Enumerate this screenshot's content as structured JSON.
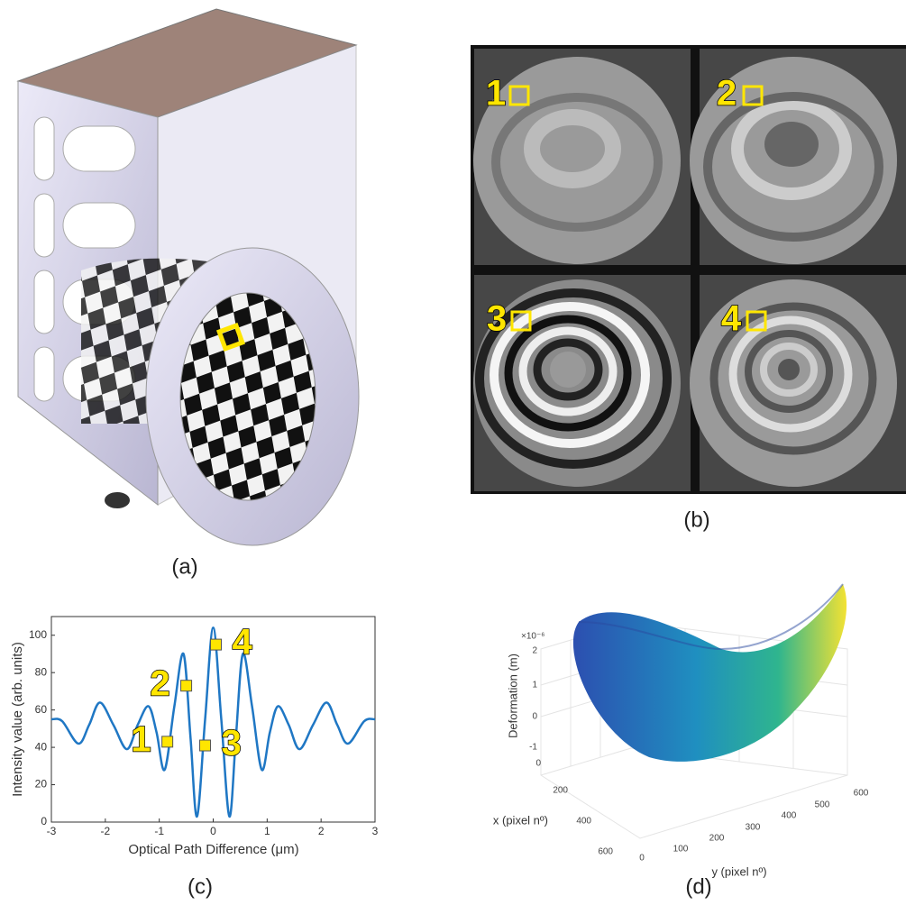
{
  "panels": {
    "a": {
      "label": "(a)"
    },
    "b": {
      "label": "(b)",
      "tiles": [
        "1",
        "2",
        "3",
        "4"
      ]
    },
    "c": {
      "label": "(c)"
    },
    "d": {
      "label": "(d)",
      "z_axis_label": "Deformation (m)",
      "z_scale": "×10⁻⁶",
      "z_ticks": [
        "2",
        "1",
        "0",
        "-1"
      ],
      "x_axis_label": "x (pixel nº)",
      "x_ticks": [
        "0",
        "200",
        "400",
        "600"
      ],
      "y_axis_label": "y (pixel nº)",
      "y_ticks": [
        "0",
        "100",
        "200",
        "300",
        "400",
        "500",
        "600"
      ]
    }
  },
  "chart_data": {
    "type": "line",
    "x_label": "Optical Path Difference (μm)",
    "y_label": "Intensity value (arb. units)",
    "x": [
      -3,
      -2.8,
      -2.5,
      -2.3,
      -2.1,
      -1.85,
      -1.6,
      -1.4,
      -1.2,
      -1.05,
      -0.9,
      -0.72,
      -0.55,
      -0.42,
      -0.3,
      -0.15,
      0,
      0.15,
      0.3,
      0.42,
      0.55,
      0.72,
      0.9,
      1.05,
      1.2,
      1.4,
      1.6,
      1.85,
      2.1,
      2.3,
      2.5,
      2.8,
      3
    ],
    "values": [
      55,
      54,
      42,
      52,
      64,
      52,
      39,
      52,
      62,
      48,
      28,
      62,
      90,
      45,
      3,
      55,
      104,
      55,
      3,
      45,
      90,
      62,
      28,
      48,
      62,
      52,
      39,
      52,
      64,
      52,
      42,
      54,
      55
    ],
    "color": "#1f77c4",
    "xlim": [
      -3,
      3
    ],
    "xticks": [
      -3,
      -2,
      -1,
      0,
      1,
      2,
      3
    ],
    "ylim": [
      0,
      110
    ],
    "yticks": [
      0,
      20,
      40,
      60,
      80,
      100
    ],
    "markers": [
      {
        "label": "1",
        "x": -0.85,
        "y": 43
      },
      {
        "label": "2",
        "x": -0.5,
        "y": 73
      },
      {
        "label": "3",
        "x": -0.15,
        "y": 41
      },
      {
        "label": "4",
        "x": 0.05,
        "y": 95
      }
    ],
    "marker_color": "#ffe600"
  }
}
